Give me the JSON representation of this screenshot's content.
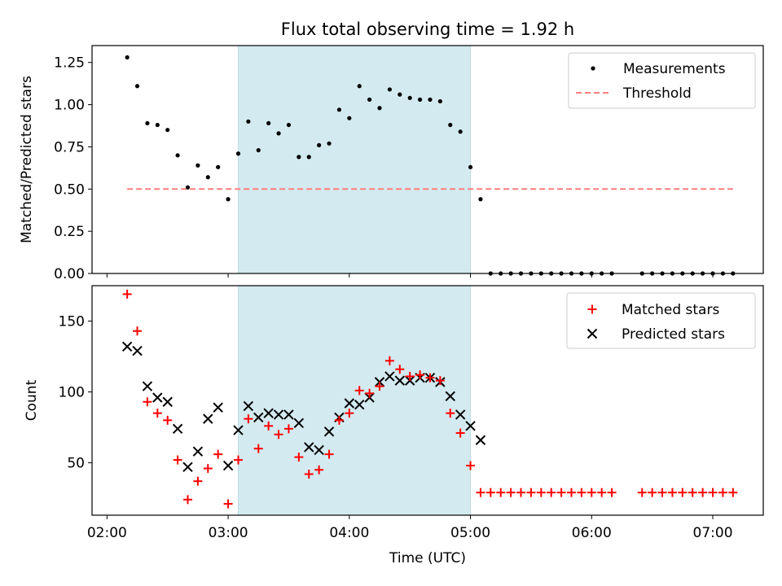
{
  "title": "Flux total observing time = 1.92 h",
  "colors": {
    "span": "#d3eaf0",
    "span_edge": "#b9dbe6",
    "threshold": "#ff7f7f",
    "matched": "#ff0000",
    "predicted": "#000000",
    "measurement": "#000000"
  },
  "chart_data": [
    {
      "type": "scatter",
      "panel": "top",
      "ylabel": "Matched/Predicted stars",
      "xlabel": "",
      "xlim": [
        "02:00",
        "07:25"
      ],
      "ylim": [
        0,
        1.35
      ],
      "yticks": [
        0.0,
        0.25,
        0.5,
        0.75,
        1.0,
        1.25
      ],
      "ytick_labels": [
        "0.00",
        "0.25",
        "0.50",
        "0.75",
        "1.00",
        "1.25"
      ],
      "xticks": [
        "02:00",
        "03:00",
        "04:00",
        "05:00",
        "06:00",
        "07:00"
      ],
      "shaded_span": [
        "03:05",
        "05:00"
      ],
      "legend_position": "top-right",
      "legend": [
        "Measurements",
        "Threshold"
      ],
      "threshold": {
        "name": "Threshold",
        "y": 0.5,
        "x_start": "02:10",
        "x_end": "07:10",
        "style": "dashed"
      },
      "series": [
        {
          "name": "Measurements",
          "x": [
            "02:10",
            "02:15",
            "02:20",
            "02:25",
            "02:30",
            "02:35",
            "02:40",
            "02:45",
            "02:50",
            "02:55",
            "03:00",
            "03:05",
            "03:10",
            "03:15",
            "03:20",
            "03:25",
            "03:30",
            "03:35",
            "03:40",
            "03:45",
            "03:50",
            "03:55",
            "04:00",
            "04:05",
            "04:10",
            "04:15",
            "04:20",
            "04:25",
            "04:30",
            "04:35",
            "04:40",
            "04:45",
            "04:50",
            "04:55",
            "05:00",
            "05:05",
            "05:10",
            "05:15",
            "05:20",
            "05:25",
            "05:30",
            "05:35",
            "05:40",
            "05:45",
            "05:50",
            "05:55",
            "06:00",
            "06:05",
            "06:10",
            "06:25",
            "06:30",
            "06:35",
            "06:40",
            "06:45",
            "06:50",
            "06:55",
            "07:00",
            "07:05",
            "07:10"
          ],
          "y": [
            1.28,
            1.11,
            0.89,
            0.88,
            0.85,
            0.7,
            0.51,
            0.64,
            0.57,
            0.63,
            0.44,
            0.71,
            0.9,
            0.73,
            0.89,
            0.83,
            0.88,
            0.69,
            0.69,
            0.76,
            0.77,
            0.97,
            0.92,
            1.11,
            1.03,
            0.98,
            1.09,
            1.06,
            1.04,
            1.03,
            1.03,
            1.02,
            0.88,
            0.84,
            0.63,
            0.44,
            0,
            0,
            0,
            0,
            0,
            0,
            0,
            0,
            0,
            0,
            0,
            0,
            0,
            0,
            0,
            0,
            0,
            0,
            0,
            0,
            0,
            0,
            0
          ]
        }
      ]
    },
    {
      "type": "scatter",
      "panel": "bottom",
      "ylabel": "Count",
      "xlabel": "Time (UTC)",
      "xlim": [
        "02:00",
        "07:25"
      ],
      "ylim": [
        13,
        175
      ],
      "yticks": [
        50,
        100,
        150
      ],
      "ytick_labels": [
        "50",
        "100",
        "150"
      ],
      "xticks": [
        "02:00",
        "03:00",
        "04:00",
        "05:00",
        "06:00",
        "07:00"
      ],
      "xtick_labels": [
        "02:00",
        "03:00",
        "04:00",
        "05:00",
        "06:00",
        "07:00"
      ],
      "shaded_span": [
        "03:05",
        "05:00"
      ],
      "legend_position": "top-right",
      "legend": [
        "Matched stars",
        "Predicted stars"
      ],
      "series": [
        {
          "name": "Matched stars",
          "marker": "plus",
          "x": [
            "02:10",
            "02:15",
            "02:20",
            "02:25",
            "02:30",
            "02:35",
            "02:40",
            "02:45",
            "02:50",
            "02:55",
            "03:00",
            "03:05",
            "03:10",
            "03:15",
            "03:20",
            "03:25",
            "03:30",
            "03:35",
            "03:40",
            "03:45",
            "03:50",
            "03:55",
            "04:00",
            "04:05",
            "04:10",
            "04:15",
            "04:20",
            "04:25",
            "04:30",
            "04:35",
            "04:40",
            "04:45",
            "04:50",
            "04:55",
            "05:00",
            "05:05",
            "05:10",
            "05:15",
            "05:20",
            "05:25",
            "05:30",
            "05:35",
            "05:40",
            "05:45",
            "05:50",
            "05:55",
            "06:00",
            "06:05",
            "06:10",
            "06:25",
            "06:30",
            "06:35",
            "06:40",
            "06:45",
            "06:50",
            "06:55",
            "07:00",
            "07:05",
            "07:10"
          ],
          "y": [
            169,
            143,
            93,
            85,
            80,
            52,
            24,
            37,
            46,
            56,
            21,
            52,
            81,
            60,
            76,
            70,
            74,
            54,
            42,
            45,
            56,
            80,
            85,
            101,
            99,
            104,
            122,
            116,
            111,
            112,
            110,
            108,
            85,
            71,
            48,
            29,
            29,
            29,
            29,
            29,
            29,
            29,
            29,
            29,
            29,
            29,
            29,
            29,
            29,
            29,
            29,
            29,
            29,
            29,
            29,
            29,
            29,
            29,
            29
          ]
        },
        {
          "name": "Predicted stars",
          "marker": "x",
          "x": [
            "02:10",
            "02:15",
            "02:20",
            "02:25",
            "02:30",
            "02:35",
            "02:40",
            "02:45",
            "02:50",
            "02:55",
            "03:00",
            "03:05",
            "03:10",
            "03:15",
            "03:20",
            "03:25",
            "03:30",
            "03:35",
            "03:40",
            "03:45",
            "03:50",
            "03:55",
            "04:00",
            "04:05",
            "04:10",
            "04:15",
            "04:20",
            "04:25",
            "04:30",
            "04:35",
            "04:40",
            "04:45",
            "04:50",
            "04:55",
            "05:00",
            "05:05"
          ],
          "y": [
            132,
            129,
            104,
            96,
            93,
            74,
            47,
            58,
            81,
            89,
            48,
            73,
            90,
            82,
            85,
            84,
            84,
            78,
            61,
            59,
            72,
            82,
            92,
            91,
            96,
            107,
            111,
            108,
            108,
            110,
            110,
            107,
            97,
            84,
            76,
            66
          ]
        }
      ]
    }
  ]
}
